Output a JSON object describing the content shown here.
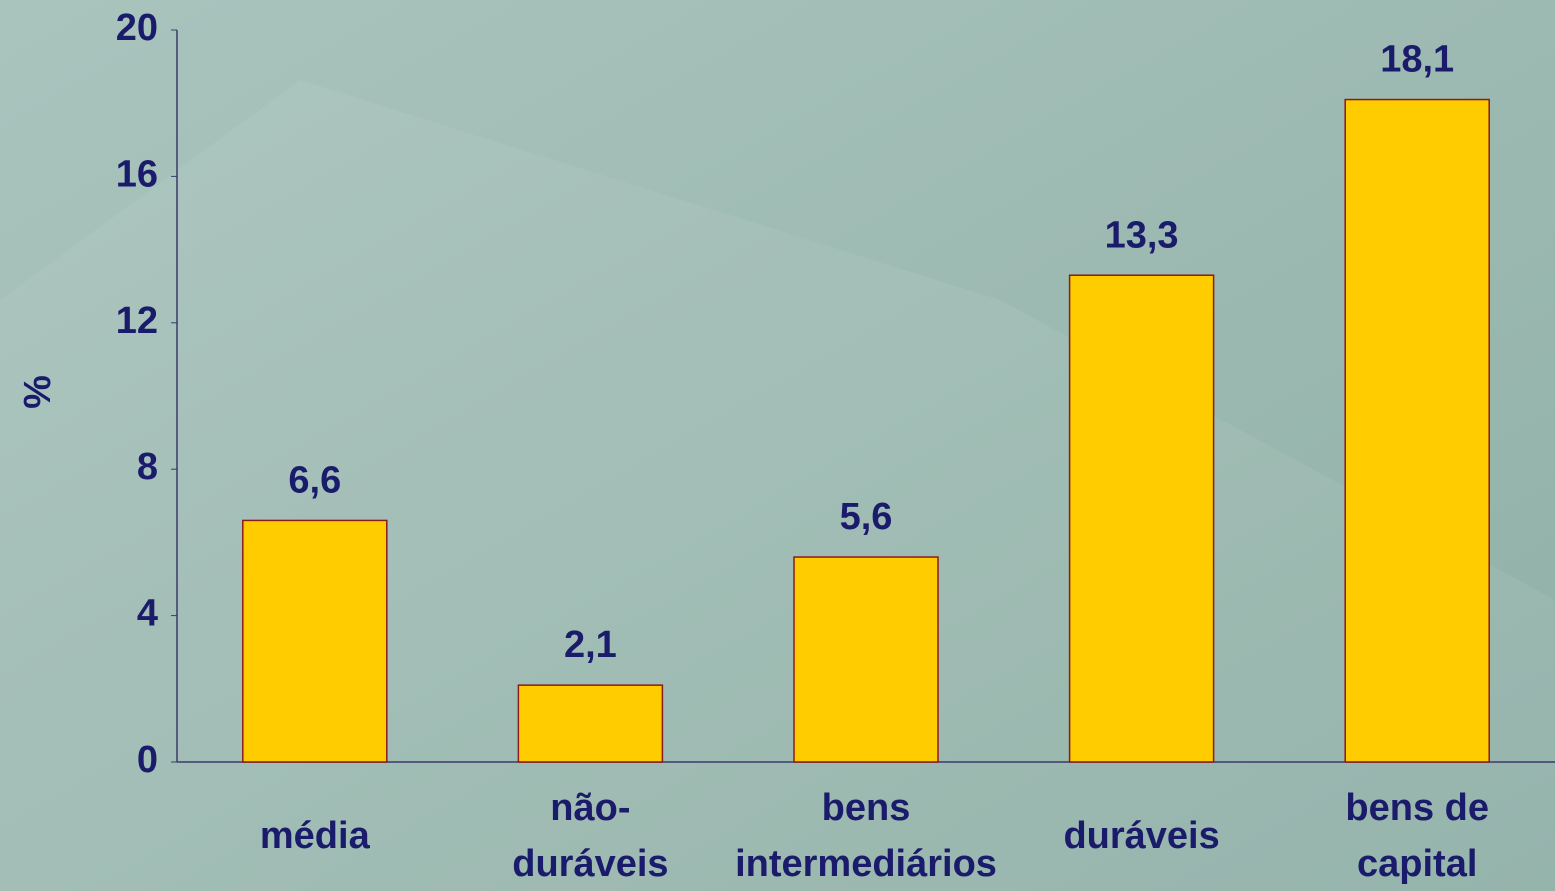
{
  "chart_data": {
    "type": "bar",
    "y_label": "%",
    "categories": [
      "média",
      "não-\nduráveis",
      "bens\nintermediários",
      "duráveis",
      "bens de\ncapital"
    ],
    "values": [
      6.6,
      2.1,
      5.6,
      13.3,
      18.1
    ],
    "value_labels": [
      "6,6",
      "2,1",
      "5,6",
      "13,3",
      "18,1"
    ],
    "color": "#ffcc00",
    "edge_color": "#8b1a1a",
    "ylim": [
      0,
      20
    ],
    "yticks": [
      0,
      4,
      8,
      12,
      16,
      20
    ],
    "grid": false
  }
}
